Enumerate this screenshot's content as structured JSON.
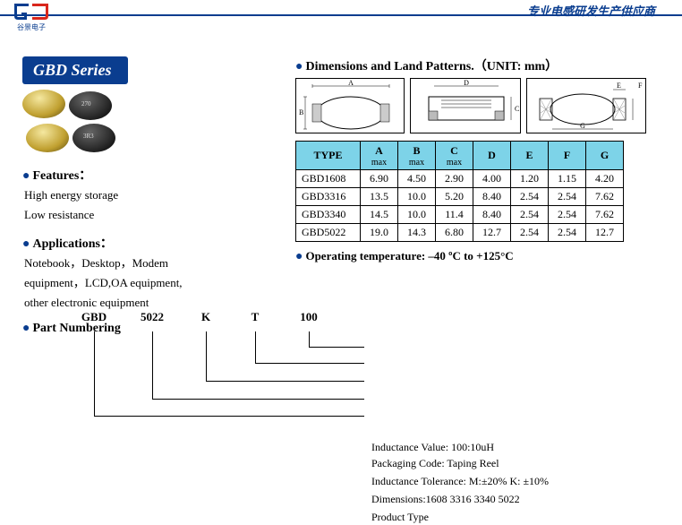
{
  "header": {
    "right_text": "专业电感研发生产供应商"
  },
  "series_badge": "GBD   Series",
  "features": {
    "title": "Features：",
    "line1": "High energy storage",
    "line2": "Low resistance"
  },
  "applications": {
    "title": "Applications：",
    "line1": "Notebook，Desktop，Modem",
    "line2": "equipment，LCD,OA equipment,",
    "line3": "other electronic equipment"
  },
  "part_numbering": {
    "title": "Part Numbering",
    "p1": "GBD",
    "p2": "5022",
    "p3": "K",
    "p4": "T",
    "p5": "100",
    "desc1": "Inductance Value:   100:10uH",
    "desc2": "Packaging Code: Taping Reel",
    "desc3": "Inductance Tolerance: M:±20% K: ±10%",
    "desc4": "Dimensions:1608 3316 3340 5022",
    "desc5": "Product Type"
  },
  "dimensions": {
    "title": "Dimensions and Land Patterns.（UNIT: mm）",
    "labels": {
      "A": "A",
      "B": "B",
      "C": "C",
      "D": "D",
      "E": "E",
      "F": "F",
      "G": "G"
    }
  },
  "table": {
    "headers": {
      "type": "TYPE",
      "A": "A",
      "B": "B",
      "C": "C",
      "D": "D",
      "E": "E",
      "F": "F",
      "G": "G",
      "max": "max"
    },
    "rows": [
      {
        "type": "GBD1608",
        "A": "6.90",
        "B": "4.50",
        "C": "2.90",
        "D": "4.00",
        "E": "1.20",
        "F": "1.15",
        "G": "4.20"
      },
      {
        "type": "GBD3316",
        "A": "13.5",
        "B": "10.0",
        "C": "5.20",
        "D": "8.40",
        "E": "2.54",
        "F": "2.54",
        "G": "7.62"
      },
      {
        "type": "GBD3340",
        "A": "14.5",
        "B": "10.0",
        "C": "11.4",
        "D": "8.40",
        "E": "2.54",
        "F": "2.54",
        "G": "7.62"
      },
      {
        "type": "GBD5022",
        "A": "19.0",
        "B": "14.3",
        "C": "6.80",
        "D": "12.7",
        "E": "2.54",
        "F": "2.54",
        "G": "12.7"
      }
    ]
  },
  "op_temp": "Operating temperature: –40 ºC to +125°C",
  "colors": {
    "brand_blue": "#0a3d8f",
    "table_header": "#7dd3e8"
  }
}
